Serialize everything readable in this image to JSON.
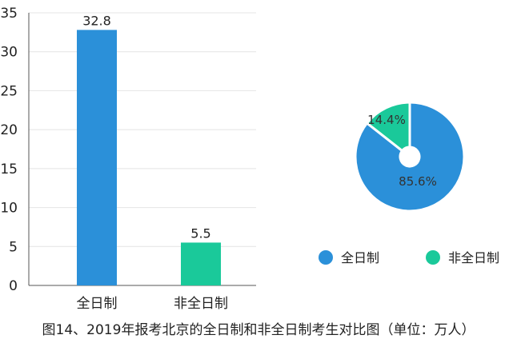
{
  "colors": {
    "full_time": "#2b90d9",
    "part_time": "#1ac99a"
  },
  "caption": "图14、2019年报考北京的全日制和非全日制考生对比图（单位：万人）",
  "chart_data": [
    {
      "type": "bar",
      "categories": [
        "全日制",
        "非全日制"
      ],
      "values": [
        32.8,
        5.5
      ],
      "data_labels": [
        "32.8",
        "5.5"
      ],
      "ylim": [
        0,
        35
      ],
      "yticks": [
        0,
        5,
        10,
        15,
        20,
        25,
        30,
        35
      ],
      "grid": true
    },
    {
      "type": "pie",
      "style": "donut",
      "categories": [
        "全日制",
        "非全日制"
      ],
      "values": [
        85.6,
        14.4
      ],
      "data_labels": [
        "85.6%",
        "14.4%"
      ],
      "legend": {
        "position": "bottom",
        "entries": [
          "全日制",
          "非全日制"
        ]
      }
    }
  ]
}
